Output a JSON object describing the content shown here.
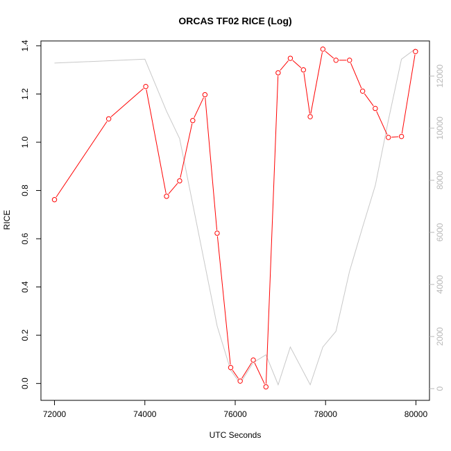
{
  "chart_data": {
    "type": "line",
    "title": "ORCAS TF02 RICE (Log)",
    "xlabel": "UTC Seconds",
    "ylabel": "RICE",
    "xlim": [
      71700,
      80300
    ],
    "ylim": [
      -0.07,
      1.42
    ],
    "y2lim": [
      -450,
      13350
    ],
    "x_ticks": [
      72000,
      74000,
      76000,
      78000,
      80000
    ],
    "y_ticks": [
      0.0,
      0.2,
      0.4,
      0.6,
      0.8,
      1.0,
      1.2,
      1.4
    ],
    "y_tick_labels": [
      "0.0",
      "0.2",
      "0.4",
      "0.6",
      "0.8",
      "1.0",
      "1.2",
      "1.4"
    ],
    "y2_ticks": [
      0,
      2000,
      4000,
      6000,
      8000,
      10000,
      12000
    ],
    "grid": false,
    "series": [
      {
        "color": "#ff0000",
        "marker": "open-circle",
        "axis": "left",
        "x": [
          72000,
          73200,
          74020,
          74480,
          74770,
          75060,
          75330,
          75600,
          75900,
          76110,
          76400,
          76680,
          76950,
          77220,
          77510,
          77660,
          77940,
          78230,
          78530,
          78820,
          79100,
          79390,
          79680,
          79990
        ],
        "y": [
          0.762,
          1.097,
          1.231,
          0.776,
          0.84,
          1.09,
          1.197,
          0.623,
          0.066,
          0.01,
          0.097,
          -0.014,
          1.288,
          1.348,
          1.3,
          1.106,
          1.386,
          1.34,
          1.34,
          1.212,
          1.14,
          1.02,
          1.024,
          1.376
        ]
      },
      {
        "color": "#c8c8c8",
        "marker": "none",
        "axis": "right",
        "x": [
          72000,
          74000,
          74480,
          74770,
          75600,
          75900,
          76110,
          76400,
          76680,
          76950,
          77220,
          77660,
          77940,
          78230,
          78530,
          78820,
          79100,
          79390,
          79680,
          79990
        ],
        "y": [
          12500,
          12650,
          10650,
          9600,
          2400,
          700,
          200,
          1000,
          1300,
          150,
          1600,
          150,
          1600,
          2200,
          4500,
          6200,
          7800,
          10300,
          12650,
          13050
        ]
      }
    ]
  }
}
